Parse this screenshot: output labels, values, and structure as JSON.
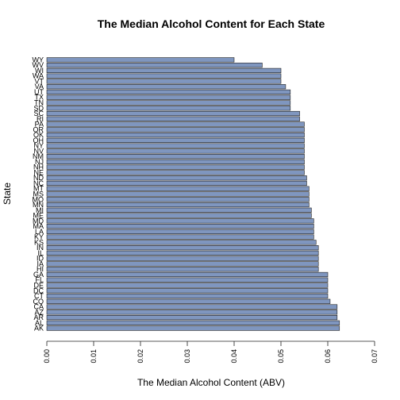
{
  "chart_data": {
    "type": "bar",
    "orientation": "horizontal",
    "title": "The Median Alcohol Content for Each State",
    "xlabel": "The Median Alcohol Content (ABV)",
    "ylabel": "State",
    "xlim": [
      0,
      0.07
    ],
    "xticks": [
      "0.00",
      "0.01",
      "0.02",
      "0.03",
      "0.04",
      "0.05",
      "0.06",
      "0.07"
    ],
    "bar_color": "#7f96bf",
    "bar_stroke": "#222222",
    "categories": [
      "AK",
      "AL",
      "AR",
      "AZ",
      "CA",
      "CO",
      "CT",
      "DC",
      "DE",
      "FL",
      "GA",
      "HI",
      "IA",
      "ID",
      "IL",
      "IN",
      "KS",
      "KY",
      "LA",
      "MA",
      "MD",
      "ME",
      "MI",
      "MN",
      "MO",
      "MS",
      "MT",
      "NC",
      "ND",
      "NE",
      "NH",
      "NJ",
      "NM",
      "NV",
      "NY",
      "OH",
      "OK",
      "OR",
      "PA",
      "RI",
      "SC",
      "SD",
      "TN",
      "TX",
      "UT",
      "VA",
      "VT",
      "WA",
      "WI",
      "WV",
      "WY"
    ],
    "values": [
      0.0625,
      0.0625,
      0.062,
      0.062,
      0.062,
      0.0605,
      0.06,
      0.06,
      0.06,
      0.06,
      0.06,
      0.058,
      0.058,
      0.058,
      0.058,
      0.058,
      0.0575,
      0.057,
      0.057,
      0.057,
      0.057,
      0.0565,
      0.0565,
      0.056,
      0.056,
      0.056,
      0.056,
      0.0555,
      0.0555,
      0.055,
      0.055,
      0.055,
      0.055,
      0.055,
      0.055,
      0.055,
      0.055,
      0.055,
      0.055,
      0.054,
      0.054,
      0.052,
      0.052,
      0.052,
      0.052,
      0.051,
      0.05,
      0.05,
      0.05,
      0.046,
      0.04
    ]
  }
}
